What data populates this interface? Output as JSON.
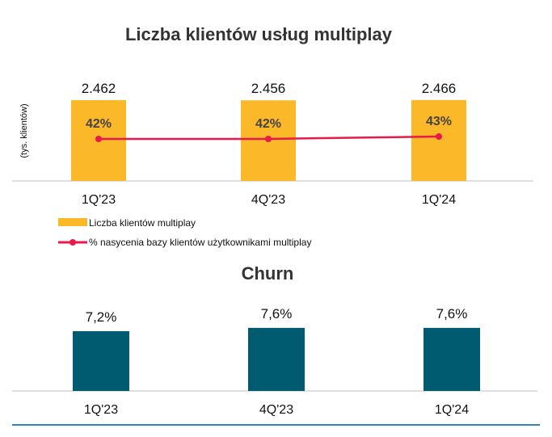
{
  "chart_data": [
    {
      "type": "bar",
      "title": "Liczba klientów usług multiplay",
      "ylabel": "(tys. klientów)",
      "categories": [
        "1Q'23",
        "4Q'23",
        "1Q'24"
      ],
      "series": [
        {
          "name": "Liczba klientów multiplay",
          "type": "bar",
          "values": [
            2462,
            2456,
            2466
          ],
          "labels": [
            "2.462",
            "2.456",
            "2.466"
          ],
          "color": "#FBB829"
        },
        {
          "name": "% nasycenia bazy klientów użytkownikami multiplay",
          "type": "line",
          "values": [
            42,
            42,
            43
          ],
          "labels": [
            "42%",
            "42%",
            "43%"
          ],
          "color": "#E8194B"
        }
      ],
      "legend_position": "bottom-left"
    },
    {
      "type": "bar",
      "title": "Churn",
      "categories": [
        "1Q'23",
        "4Q'23",
        "1Q'24"
      ],
      "values": [
        7.2,
        7.6,
        7.6
      ],
      "labels": [
        "7,2%",
        "7,6%",
        "7,6%"
      ],
      "color": "#005A70"
    }
  ],
  "colors": {
    "bottom_rule": "#2E86C1",
    "axis": "#BFBFBF"
  }
}
